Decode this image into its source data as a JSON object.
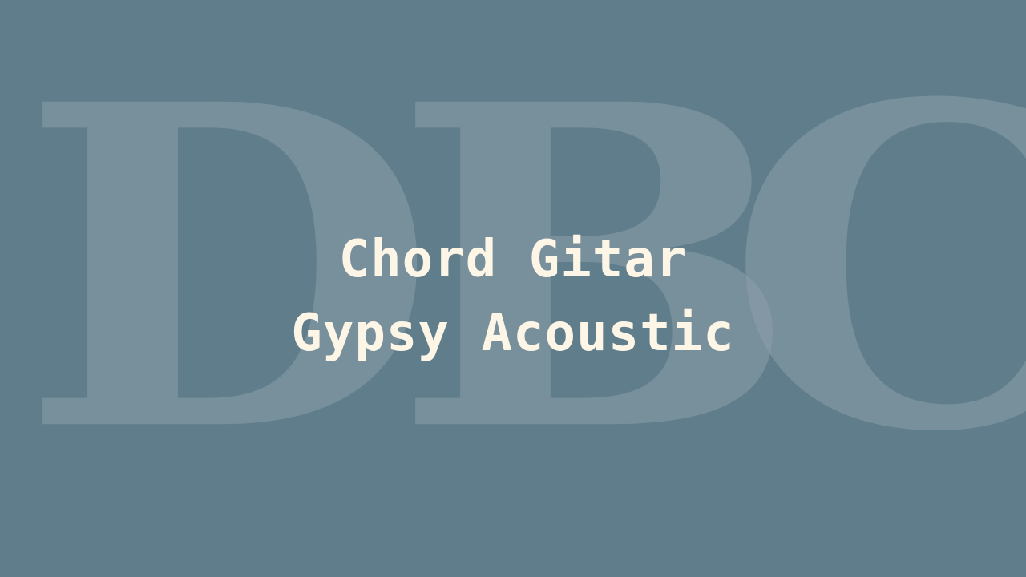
{
  "watermark": {
    "letters": [
      "D",
      "B",
      "C"
    ]
  },
  "title": {
    "line1": "Chord Gitar",
    "line2": "Gypsy Acoustic"
  },
  "colors": {
    "background": "#607d8b",
    "watermark": "#8c9fab",
    "title_text": "#fdf5e6"
  }
}
